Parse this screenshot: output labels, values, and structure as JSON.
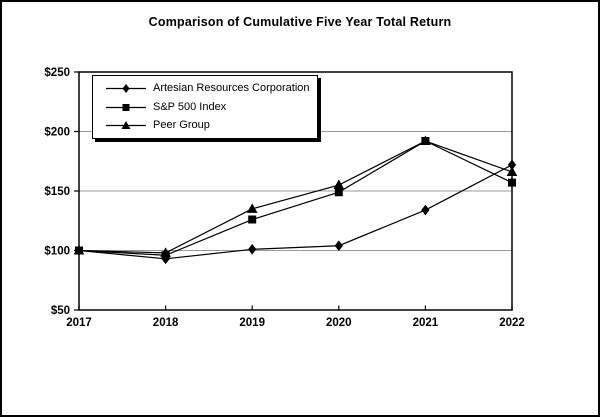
{
  "chart_data": {
    "type": "line",
    "title": "Comparison of Cumulative Five Year Total Return",
    "x": [
      2017,
      2018,
      2019,
      2020,
      2021,
      2022
    ],
    "xtick_labels": [
      "2017",
      "2018",
      "2019",
      "2020",
      "2021",
      "2022"
    ],
    "yticks": [
      {
        "label": "$50",
        "value": 50
      },
      {
        "label": "$100",
        "value": 100
      },
      {
        "label": "$150",
        "value": 150
      },
      {
        "label": "$200",
        "value": 200
      },
      {
        "label": "$250",
        "value": 250
      }
    ],
    "ylim": [
      50,
      250
    ],
    "grid": true,
    "legend_position": "top-left-inside",
    "series": [
      {
        "name": "Artesian Resources Corporation",
        "marker": "diamond",
        "values": [
          100,
          93,
          101,
          104,
          134,
          172
        ]
      },
      {
        "name": "S&P 500 Index",
        "marker": "square",
        "values": [
          100,
          96,
          126,
          149,
          192,
          157
        ]
      },
      {
        "name": "Peer Group",
        "marker": "triangle",
        "values": [
          100,
          98,
          135,
          155,
          192,
          166
        ]
      }
    ],
    "colors": {
      "line": "#000000",
      "marker": "#000000",
      "grid": "#999999",
      "frame": "#000000",
      "background": "#ffffff",
      "text": "#000000"
    }
  }
}
